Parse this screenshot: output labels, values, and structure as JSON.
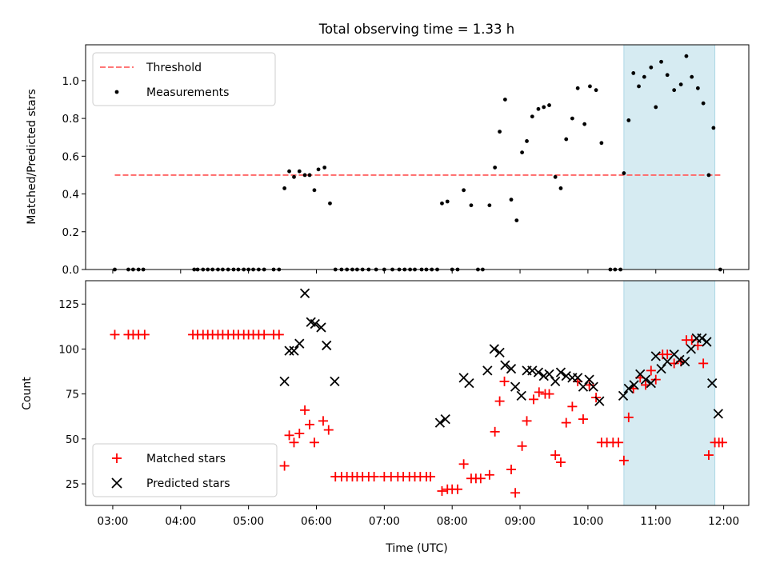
{
  "chart_data": [
    {
      "type": "scatter",
      "title": "Total observing time = 1.33 h",
      "xlabel": "",
      "ylabel": "Matched/Predicted stars",
      "x_units": "hours UTC",
      "xlim": [
        2.6,
        12.37
      ],
      "ylim": [
        0.0,
        1.19
      ],
      "y_ticks": [
        0.0,
        0.2,
        0.4,
        0.6,
        0.8,
        1.0
      ],
      "y_tick_labels": [
        "0.0",
        "0.2",
        "0.4",
        "0.6",
        "0.8",
        "1.0"
      ],
      "shaded_interval": {
        "x": [
          10.53,
          11.87
        ],
        "color": "#add8e6"
      },
      "legend": {
        "placement": "upper left",
        "entries": [
          "Threshold",
          "Measurements"
        ]
      },
      "colors": {
        "threshold": "#ff6666",
        "measurements": "#000000"
      },
      "series": [
        {
          "name": "Threshold",
          "style": "dashed-line",
          "x": [
            3.03,
            11.95
          ],
          "y": [
            0.5,
            0.5
          ]
        },
        {
          "name": "Measurements",
          "style": "dots",
          "x": [
            3.03,
            3.23,
            3.3,
            3.38,
            3.45,
            4.2,
            4.25,
            4.33,
            4.4,
            4.47,
            4.55,
            4.62,
            4.7,
            4.78,
            4.85,
            4.93,
            5.0,
            5.07,
            5.15,
            5.23,
            5.37,
            5.45,
            5.53,
            5.6,
            5.67,
            5.75,
            5.83,
            5.9,
            5.97,
            6.03,
            6.12,
            6.2,
            6.28,
            6.37,
            6.45,
            6.53,
            6.6,
            6.68,
            6.77,
            6.88,
            7.0,
            7.12,
            7.22,
            7.3,
            7.38,
            7.45,
            7.55,
            7.62,
            7.7,
            7.78,
            7.85,
            7.93,
            8.0,
            8.08,
            8.17,
            8.28,
            8.38,
            8.45,
            8.55,
            8.63,
            8.7,
            8.78,
            8.87,
            8.95,
            9.03,
            9.1,
            9.18,
            9.27,
            9.35,
            9.43,
            9.52,
            9.6,
            9.68,
            9.77,
            9.85,
            9.95,
            10.03,
            10.12,
            10.2,
            10.33,
            10.4,
            10.48,
            10.53,
            10.6,
            10.67,
            10.75,
            10.83,
            10.93,
            11.0,
            11.08,
            11.17,
            11.27,
            11.37,
            11.45,
            11.53,
            11.62,
            11.7,
            11.78,
            11.85,
            11.95
          ],
          "y": [
            0.0,
            0.0,
            0.0,
            0.0,
            0.0,
            0.0,
            0.0,
            0.0,
            0.0,
            0.0,
            0.0,
            0.0,
            0.0,
            0.0,
            0.0,
            0.0,
            0.0,
            0.0,
            0.0,
            0.0,
            0.0,
            0.0,
            0.43,
            0.52,
            0.49,
            0.52,
            0.5,
            0.5,
            0.42,
            0.53,
            0.54,
            0.35,
            0.0,
            0.0,
            0.0,
            0.0,
            0.0,
            0.0,
            0.0,
            0.0,
            0.0,
            0.0,
            0.0,
            0.0,
            0.0,
            0.0,
            0.0,
            0.0,
            0.0,
            0.0,
            0.35,
            0.36,
            0.0,
            0.0,
            0.42,
            0.34,
            0.0,
            0.0,
            0.34,
            0.54,
            0.73,
            0.9,
            0.37,
            0.26,
            0.62,
            0.68,
            0.81,
            0.85,
            0.86,
            0.87,
            0.49,
            0.43,
            0.69,
            0.8,
            0.96,
            0.77,
            0.97,
            0.95,
            0.67,
            0.0,
            0.0,
            0.0,
            0.51,
            0.79,
            1.04,
            0.97,
            1.02,
            1.07,
            0.86,
            1.1,
            1.03,
            0.95,
            0.98,
            1.13,
            1.02,
            0.96,
            0.88,
            0.5,
            0.75,
            0.0
          ]
        }
      ]
    },
    {
      "type": "scatter",
      "title": "",
      "xlabel": "Time (UTC)",
      "ylabel": "Count",
      "x_units": "hours UTC",
      "xlim": [
        2.6,
        12.37
      ],
      "ylim": [
        13,
        138
      ],
      "x_ticks": [
        3,
        4,
        5,
        6,
        7,
        8,
        9,
        10,
        11,
        12
      ],
      "x_tick_labels": [
        "03:00",
        "04:00",
        "05:00",
        "06:00",
        "07:00",
        "08:00",
        "09:00",
        "10:00",
        "11:00",
        "12:00"
      ],
      "y_ticks": [
        25,
        50,
        75,
        100,
        125
      ],
      "y_tick_labels": [
        "25",
        "50",
        "75",
        "100",
        "125"
      ],
      "shaded_interval": {
        "x": [
          10.53,
          11.87
        ],
        "color": "#add8e6"
      },
      "legend": {
        "placement": "lower left",
        "entries": [
          "Matched stars",
          "Predicted stars"
        ]
      },
      "colors": {
        "matched": "#ff0000",
        "predicted": "#000000"
      },
      "series": [
        {
          "name": "Matched stars",
          "marker": "plus",
          "x": [
            3.03,
            3.23,
            3.3,
            3.38,
            3.47,
            4.18,
            4.25,
            4.33,
            4.4,
            4.47,
            4.55,
            4.62,
            4.7,
            4.78,
            4.85,
            4.93,
            5.0,
            5.07,
            5.15,
            5.23,
            5.37,
            5.45,
            5.53,
            5.6,
            5.67,
            5.75,
            5.83,
            5.9,
            5.97,
            6.1,
            6.18,
            6.28,
            6.37,
            6.45,
            6.53,
            6.6,
            6.68,
            6.77,
            6.85,
            7.0,
            7.1,
            7.2,
            7.28,
            7.37,
            7.45,
            7.53,
            7.62,
            7.68,
            7.85,
            7.93,
            8.0,
            8.08,
            8.17,
            8.28,
            8.35,
            8.42,
            8.55,
            8.63,
            8.7,
            8.77,
            8.87,
            8.93,
            9.03,
            9.1,
            9.2,
            9.28,
            9.37,
            9.43,
            9.52,
            9.6,
            9.68,
            9.77,
            9.85,
            9.93,
            10.02,
            10.12,
            10.2,
            10.28,
            10.37,
            10.45,
            10.53,
            10.6,
            10.67,
            10.77,
            10.85,
            10.93,
            11.0,
            11.1,
            11.17,
            11.27,
            11.37,
            11.45,
            11.53,
            11.62,
            11.7,
            11.78,
            11.87,
            11.93,
            11.98
          ],
          "y": [
            108,
            108,
            108,
            108,
            108,
            108,
            108,
            108,
            108,
            108,
            108,
            108,
            108,
            108,
            108,
            108,
            108,
            108,
            108,
            108,
            108,
            108,
            35,
            52,
            48,
            53,
            66,
            58,
            48,
            60,
            55,
            29,
            29,
            29,
            29,
            29,
            29,
            29,
            29,
            29,
            29,
            29,
            29,
            29,
            29,
            29,
            29,
            29,
            21,
            22,
            22,
            22,
            36,
            28,
            28,
            28,
            30,
            54,
            71,
            82,
            33,
            20,
            46,
            60,
            72,
            76,
            75,
            75,
            41,
            37,
            59,
            68,
            82,
            61,
            80,
            73,
            48,
            48,
            48,
            48,
            38,
            62,
            78,
            84,
            80,
            88,
            83,
            97,
            97,
            92,
            93,
            105,
            105,
            102,
            92,
            41,
            48,
            48,
            48
          ]
        },
        {
          "name": "Predicted stars",
          "marker": "x",
          "x": [
            5.53,
            5.6,
            5.67,
            5.75,
            5.83,
            5.92,
            5.98,
            6.07,
            6.15,
            6.27,
            7.82,
            7.9,
            8.17,
            8.25,
            8.52,
            8.62,
            8.7,
            8.78,
            8.87,
            8.93,
            9.02,
            9.1,
            9.18,
            9.27,
            9.35,
            9.43,
            9.52,
            9.6,
            9.68,
            9.77,
            9.85,
            9.93,
            10.02,
            10.08,
            10.17,
            10.52,
            10.6,
            10.68,
            10.77,
            10.85,
            10.93,
            11.0,
            11.08,
            11.17,
            11.27,
            11.35,
            11.43,
            11.52,
            11.6,
            11.68,
            11.75,
            11.83,
            11.92
          ],
          "y": [
            82,
            99,
            99,
            103,
            131,
            115,
            114,
            112,
            102,
            82,
            59,
            61,
            84,
            81,
            88,
            100,
            98,
            91,
            89,
            79,
            74,
            88,
            88,
            87,
            85,
            86,
            82,
            87,
            85,
            84,
            84,
            79,
            83,
            79,
            71,
            74,
            78,
            80,
            86,
            83,
            81,
            96,
            89,
            93,
            97,
            94,
            93,
            100,
            106,
            106,
            104,
            81,
            64
          ]
        }
      ]
    }
  ]
}
